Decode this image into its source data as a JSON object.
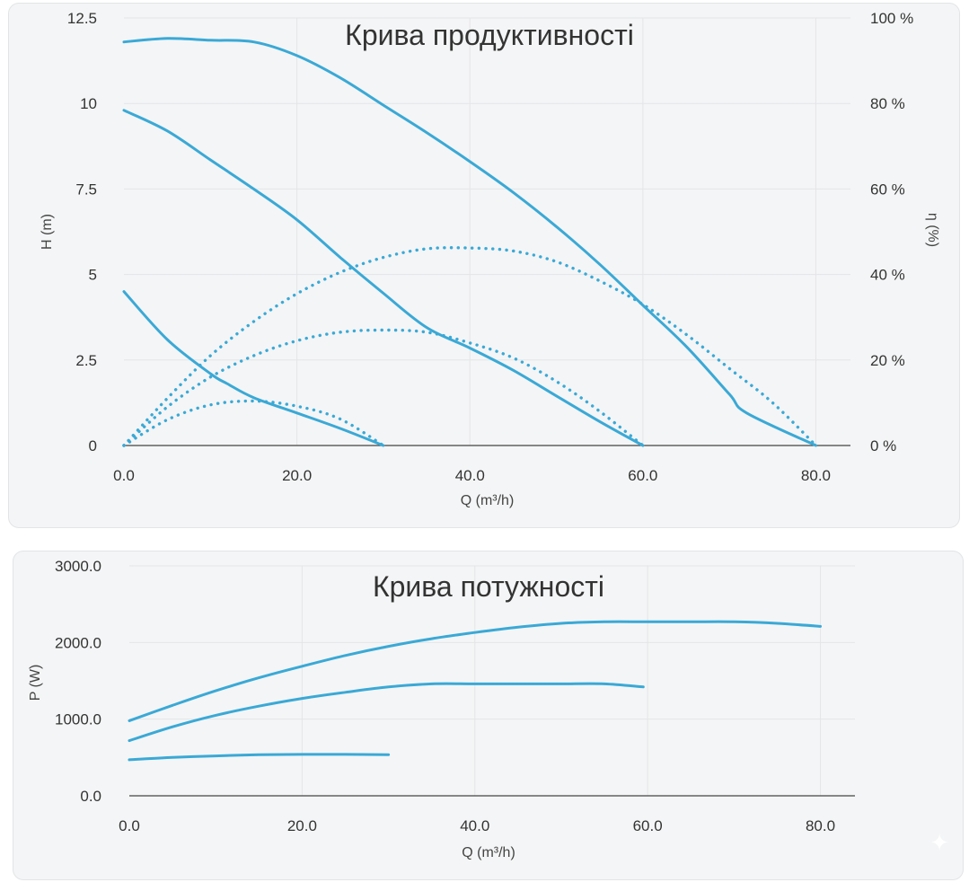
{
  "chart_data": [
    {
      "type": "line",
      "title": "Крива продуктивності",
      "xlabel": "Q (m³/h)",
      "ylabel": "H (m)",
      "y2label": "η (%)",
      "xlim": [
        0,
        84
      ],
      "ylim": [
        0,
        12.5
      ],
      "y2lim": [
        0,
        100
      ],
      "x_ticks": [
        "0.0",
        "20.0",
        "40.0",
        "60.0",
        "80.0"
      ],
      "x_tick_values": [
        0,
        20,
        40,
        60,
        80
      ],
      "y_ticks": [
        "0",
        "2.5",
        "5",
        "7.5",
        "10",
        "12.5"
      ],
      "y_tick_values": [
        0,
        2.5,
        5,
        7.5,
        10,
        12.5
      ],
      "y2_ticks": [
        "0 %",
        "20 %",
        "40 %",
        "60 %",
        "80 %",
        "100 %"
      ],
      "y2_tick_values": [
        0,
        20,
        40,
        60,
        80,
        100
      ],
      "grid": true,
      "head_curves": [
        {
          "x": [
            0,
            5,
            10,
            15,
            20,
            25,
            30,
            35,
            40,
            45,
            50,
            55,
            60,
            65,
            70,
            72,
            80
          ],
          "y": [
            11.8,
            11.9,
            11.85,
            11.8,
            11.4,
            10.75,
            9.95,
            9.15,
            8.3,
            7.4,
            6.4,
            5.3,
            4.1,
            2.9,
            1.5,
            0.95,
            0
          ]
        },
        {
          "x": [
            0,
            5,
            10,
            15,
            20,
            25,
            30,
            35,
            40,
            45,
            50,
            55,
            60
          ],
          "y": [
            9.8,
            9.2,
            8.35,
            7.5,
            6.6,
            5.5,
            4.45,
            3.45,
            2.85,
            2.2,
            1.45,
            0.7,
            0
          ]
        },
        {
          "x": [
            0,
            5,
            10,
            12,
            15,
            20,
            25,
            30
          ],
          "y": [
            4.5,
            3.1,
            2.1,
            1.8,
            1.4,
            0.95,
            0.5,
            0
          ]
        }
      ],
      "efficiency_curves": [
        {
          "x": [
            0,
            5,
            10,
            15,
            20,
            25,
            30,
            35,
            40,
            45,
            50,
            55,
            60,
            65,
            70,
            75,
            80
          ],
          "y": [
            0,
            11,
            21,
            29,
            35.5,
            40.5,
            44,
            46,
            46.2,
            45.5,
            43,
            38.5,
            33,
            26,
            18,
            10,
            0
          ]
        },
        {
          "x": [
            0,
            5,
            10,
            15,
            20,
            25,
            30,
            35,
            40,
            45,
            50,
            55,
            60
          ],
          "y": [
            0,
            9,
            16,
            21,
            24.5,
            26.5,
            27,
            26.5,
            24,
            20.5,
            15,
            8,
            0
          ]
        },
        {
          "x": [
            0,
            5,
            10,
            15,
            20,
            25,
            30
          ],
          "y": [
            0,
            6,
            9.5,
            10.4,
            9.2,
            6.2,
            0
          ]
        }
      ]
    },
    {
      "type": "line",
      "title": "Крива потужності",
      "xlabel": "Q (m³/h)",
      "ylabel": "P (W)",
      "xlim": [
        0,
        84
      ],
      "ylim": [
        0,
        3000
      ],
      "x_ticks": [
        "0.0",
        "20.0",
        "40.0",
        "60.0",
        "80.0"
      ],
      "x_tick_values": [
        0,
        20,
        40,
        60,
        80
      ],
      "y_ticks": [
        "0.0",
        "1000.0",
        "2000.0",
        "3000.0"
      ],
      "y_tick_values": [
        0,
        1000,
        2000,
        3000
      ],
      "grid": true,
      "power_curves": [
        {
          "x": [
            0,
            5,
            10,
            15,
            20,
            25,
            30,
            35,
            40,
            45,
            50,
            55,
            60,
            65,
            70,
            75,
            80
          ],
          "y": [
            980,
            1180,
            1370,
            1540,
            1690,
            1830,
            1950,
            2050,
            2130,
            2200,
            2250,
            2270,
            2270,
            2270,
            2270,
            2250,
            2210
          ]
        },
        {
          "x": [
            0,
            5,
            10,
            15,
            20,
            25,
            30,
            35,
            40,
            45,
            50,
            55,
            59.5
          ],
          "y": [
            720,
            900,
            1050,
            1170,
            1270,
            1350,
            1420,
            1460,
            1460,
            1460,
            1460,
            1460,
            1420
          ]
        },
        {
          "x": [
            0,
            5,
            10,
            15,
            20,
            25,
            30
          ],
          "y": [
            470,
            500,
            520,
            535,
            540,
            540,
            535
          ]
        }
      ]
    }
  ],
  "colors": {
    "curve": "#3aa9d6",
    "panel_bg": "#f4f5f6",
    "grid": "#e3e5e8"
  },
  "watermark_icon": "sparkle-icon"
}
